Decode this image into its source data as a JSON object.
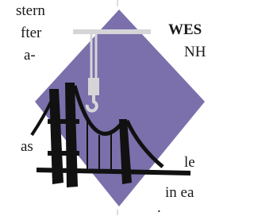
{
  "left_column": {
    "lines": [
      "stern",
      "fter",
      "a-",
      "as"
    ]
  },
  "right_column": {
    "heading": "WES",
    "subheading": "NH",
    "lines": [
      "le",
      "in ea",
      "."
    ]
  }
}
